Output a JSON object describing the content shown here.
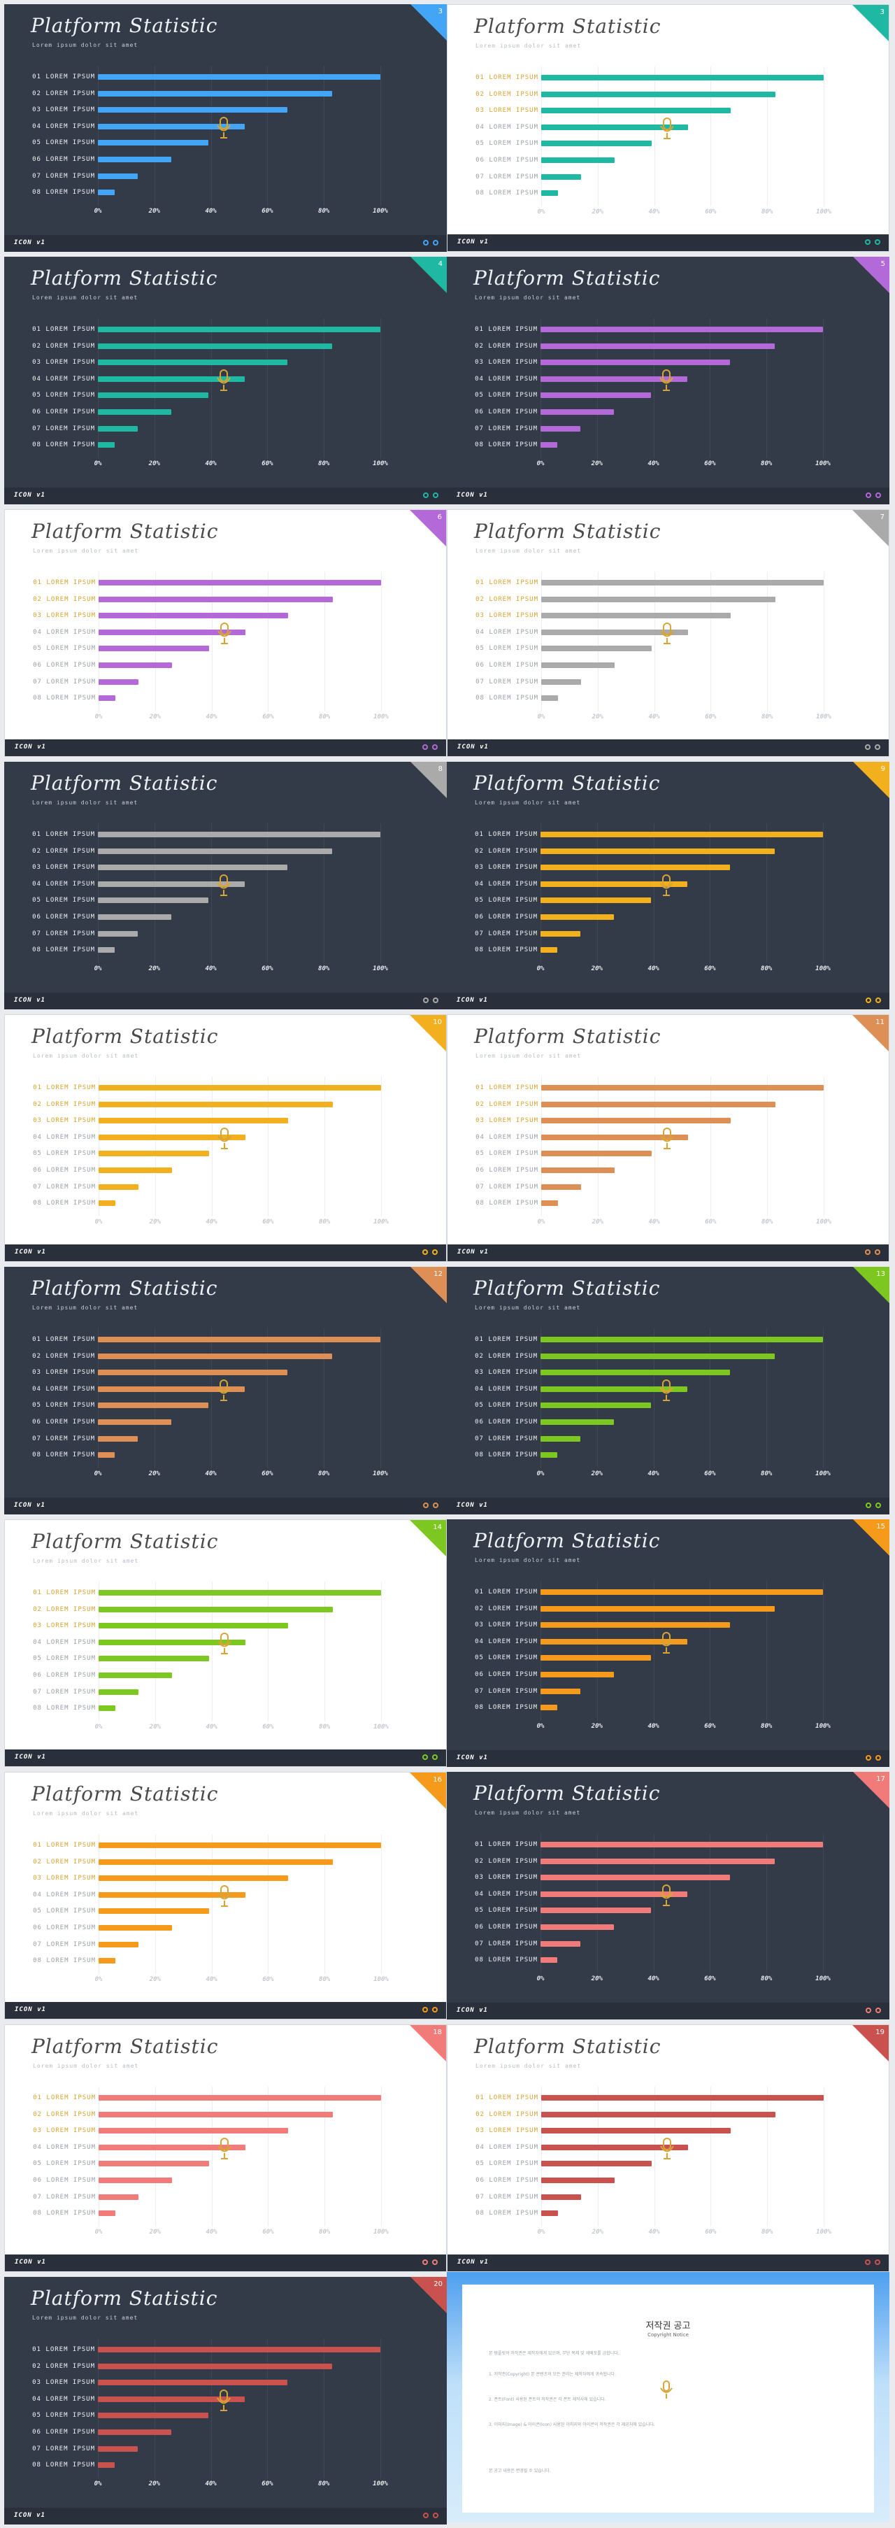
{
  "common": {
    "title": "Platform Statistic",
    "subtitle": "Lorem ipsum dolor sit amet",
    "brand": "ICON v1",
    "row_labels": [
      "01 LOREM IPSUM",
      "02 LOREM IPSUM",
      "03 LOREM IPSUM",
      "04 LOREM IPSUM",
      "05 LOREM IPSUM",
      "06 LOREM IPSUM",
      "07 LOREM IPSUM",
      "08 LOREM IPSUM"
    ],
    "x_ticks": [
      "0%",
      "20%",
      "40%",
      "60%",
      "80%",
      "100%"
    ]
  },
  "slides": [
    {
      "page": "3",
      "theme": "dark",
      "accent": "#42a5f5"
    },
    {
      "page": "3",
      "theme": "light",
      "accent": "#1fb8a2"
    },
    {
      "page": "4",
      "theme": "dark",
      "accent": "#1fb8a2"
    },
    {
      "page": "5",
      "theme": "dark",
      "accent": "#b36ad8"
    },
    {
      "page": "6",
      "theme": "light",
      "accent": "#b36ad8"
    },
    {
      "page": "7",
      "theme": "light",
      "accent": "#aaaaaa"
    },
    {
      "page": "8",
      "theme": "dark",
      "accent": "#aaaaaa"
    },
    {
      "page": "9",
      "theme": "dark",
      "accent": "#f2b01e"
    },
    {
      "page": "10",
      "theme": "light",
      "accent": "#f2b01e"
    },
    {
      "page": "11",
      "theme": "light",
      "accent": "#dd8f56"
    },
    {
      "page": "12",
      "theme": "dark",
      "accent": "#dd8f56"
    },
    {
      "page": "13",
      "theme": "dark",
      "accent": "#7cc820"
    },
    {
      "page": "14",
      "theme": "light",
      "accent": "#7cc820"
    },
    {
      "page": "15",
      "theme": "dark",
      "accent": "#f59a1b"
    },
    {
      "page": "16",
      "theme": "light",
      "accent": "#f59a1b"
    },
    {
      "page": "17",
      "theme": "dark",
      "accent": "#f07b78"
    },
    {
      "page": "18",
      "theme": "light",
      "accent": "#f07b78"
    },
    {
      "page": "19",
      "theme": "light",
      "accent": "#c9514e"
    },
    {
      "page": "20",
      "theme": "dark",
      "accent": "#c9514e"
    }
  ],
  "chart_data": {
    "type": "bar",
    "orientation": "horizontal",
    "categories": [
      "01 LOREM IPSUM",
      "02 LOREM IPSUM",
      "03 LOREM IPSUM",
      "04 LOREM IPSUM",
      "05 LOREM IPSUM",
      "06 LOREM IPSUM",
      "07 LOREM IPSUM",
      "08 LOREM IPSUM"
    ],
    "values": [
      100,
      83,
      67,
      52,
      39,
      26,
      14,
      6
    ],
    "xlim": [
      0,
      100
    ],
    "x_ticks": [
      "0%",
      "20%",
      "40%",
      "60%",
      "80%",
      "100%"
    ],
    "grid": true
  },
  "copyright": {
    "title": "저작권 공고",
    "subtitle": "Copyright Notice",
    "paragraphs": [
      "본 템플릿의 저작권은 제작자에게 있으며, 무단 복제 및 재배포를 금합니다.",
      "1. 저작권(Copyright) 본 콘텐츠의 모든 권리는 제작자에게 귀속됩니다.",
      "2. 폰트(Font) 사용된 폰트의 저작권은 각 폰트 제작사에 있습니다.",
      "3. 이미지(Image) & 아이콘(Icon) 사용된 이미지와 아이콘의 저작권은 각 제공처에 있습니다.",
      "본 공고 내용은 변경될 수 있습니다."
    ]
  }
}
